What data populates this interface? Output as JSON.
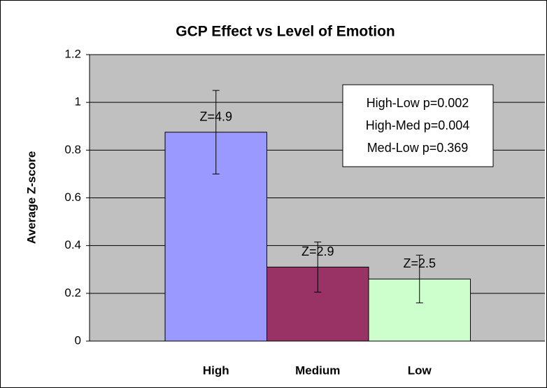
{
  "chart_data": {
    "type": "bar",
    "title": "GCP Effect vs Level of Emotion",
    "y_label": "Average Z-score",
    "categories": [
      "High",
      "Medium",
      "Low"
    ],
    "values": [
      0.875,
      0.31,
      0.26
    ],
    "errors": [
      0.175,
      0.105,
      0.1
    ],
    "colors": [
      "#9999ff",
      "#993366",
      "#ccffcc"
    ],
    "bar_annotations": [
      "Z=4.9",
      "Z=2.9",
      "Z=2.5"
    ],
    "stats_box": [
      "High-Low p=0.002",
      "High-Med p=0.004",
      "Med-Low p=0.369"
    ],
    "ylim": [
      0,
      1.2
    ],
    "yticks": [
      0,
      0.2,
      0.4,
      0.6,
      0.8,
      1,
      1.2
    ],
    "grid": true
  }
}
